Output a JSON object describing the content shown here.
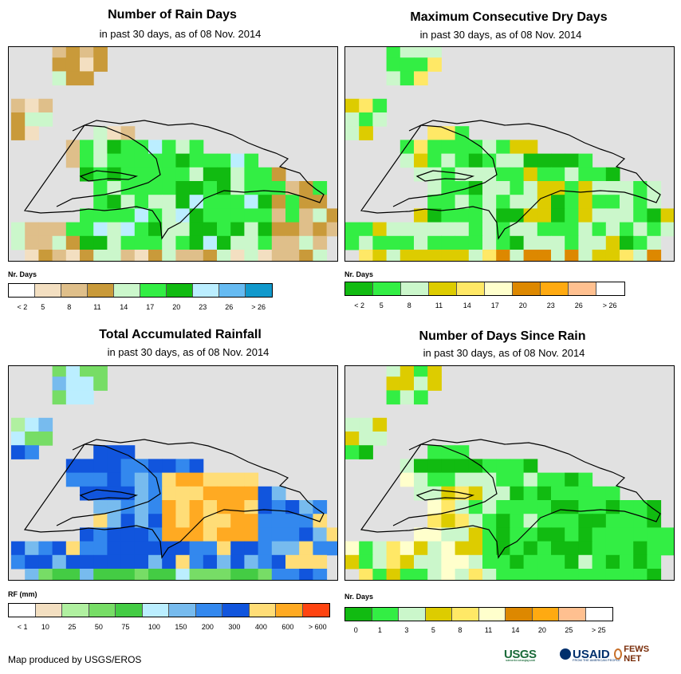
{
  "panels": [
    {
      "id": "rain-days",
      "title": "Number of Rain Days",
      "subtitle": "in past 30 days, as of 08 Nov. 2014",
      "legend": {
        "label": "Nr. Days",
        "colors": [
          "#ffffff",
          "#f3dfc1",
          "#dfbf8a",
          "#c99a3a",
          "#cbf7cb",
          "#33ee44",
          "#11bb11",
          "#bbeeff",
          "#66bbf2",
          "#1199cc"
        ],
        "ticks": [
          "< 2",
          "5",
          "8",
          "11",
          "14",
          "17",
          "20",
          "23",
          "26",
          "> 26"
        ]
      }
    },
    {
      "id": "max-dry-days",
      "title": "Maximum Consecutive Dry Days",
      "subtitle": "in past 30 days, as of 08 Nov. 2014",
      "legend": {
        "label": "Nr. Days",
        "colors": [
          "#11bb11",
          "#33ee44",
          "#cbf7cb",
          "#ddcc00",
          "#ffe866",
          "#ffffcc",
          "#dd8800",
          "#ffaa11",
          "#ffc090",
          "#ffffff"
        ],
        "ticks": [
          "< 2",
          "5",
          "8",
          "11",
          "14",
          "17",
          "20",
          "23",
          "26",
          "> 26"
        ]
      }
    },
    {
      "id": "total-rainfall",
      "title": "Total Accumulated Rainfall",
      "subtitle": "in past 30 days, as of 08 Nov. 2014",
      "legend": {
        "label": "RF (mm)",
        "colors": [
          "#ffffff",
          "#f3dfc1",
          "#b0f0a0",
          "#77dd66",
          "#44cc44",
          "#bbeeff",
          "#77bbee",
          "#3388ee",
          "#1155dd",
          "#ffdd77",
          "#ffaa22",
          "#ff4411"
        ],
        "ticks": [
          "< 1",
          "10",
          "25",
          "50",
          "75",
          "100",
          "150",
          "200",
          "300",
          "400",
          "600",
          "> 600"
        ]
      }
    },
    {
      "id": "days-since-rain",
      "title": "Number of Days Since Rain",
      "subtitle": "in past 30 days, as of 08 Nov. 2014",
      "legend": {
        "label": "Nr. Days",
        "colors": [
          "#11bb11",
          "#33ee44",
          "#cbf7cb",
          "#ddcc00",
          "#ffe866",
          "#ffffcc",
          "#dd8800",
          "#ffaa11",
          "#ffc090",
          "#ffffff"
        ],
        "ticks": [
          "0",
          "1",
          "3",
          "5",
          "8",
          "11",
          "14",
          "20",
          "25",
          "> 25"
        ]
      }
    }
  ],
  "credit": "Map produced by USGS/EROS",
  "logos": {
    "usgs": "USGS",
    "usgs_tagline": "science for a changing world",
    "usaid": "USAID",
    "usaid_tagline": "FROM THE AMERICAN PEOPLE",
    "fews": "FEWS NET"
  },
  "colors": {
    "map_background": "#e1e1e1",
    "coastline": "#000000"
  }
}
